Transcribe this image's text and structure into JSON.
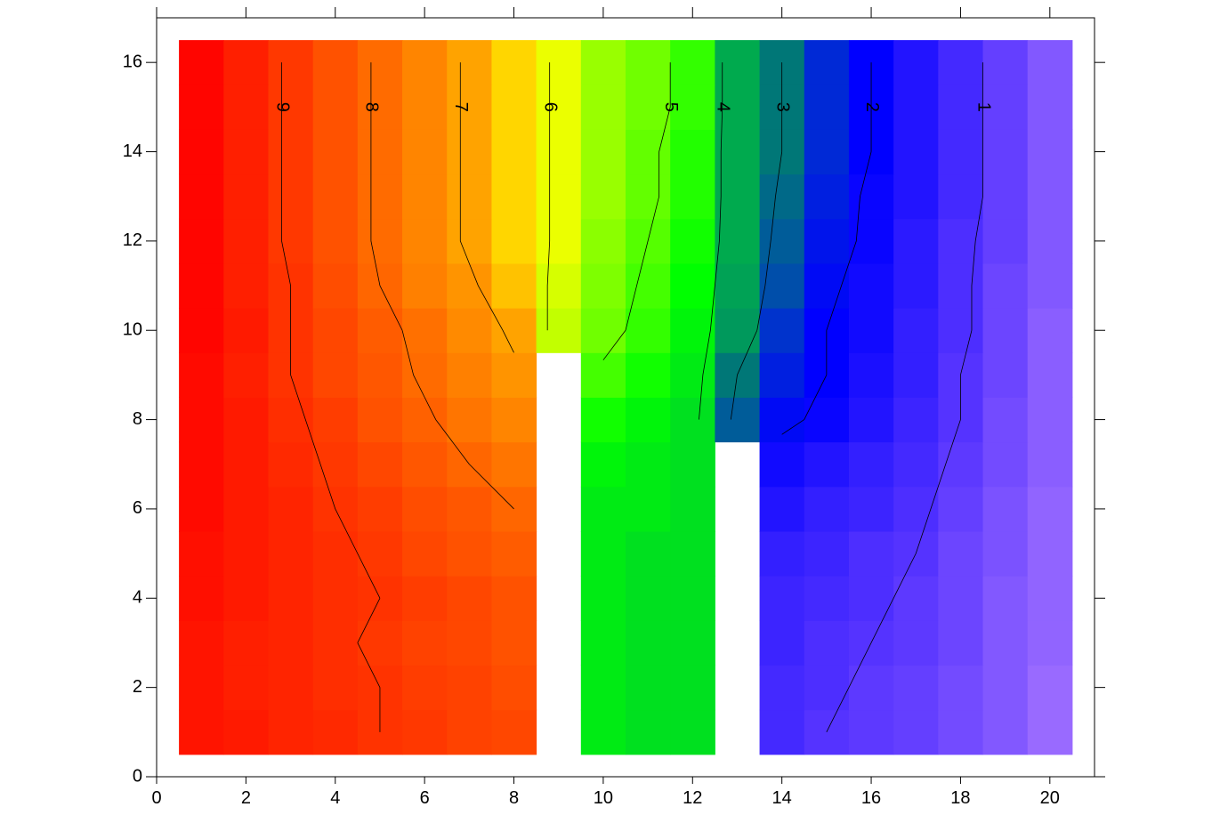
{
  "chart_data": {
    "type": "contour",
    "x": [
      1,
      2,
      3,
      4,
      5,
      6,
      7,
      8,
      9,
      10,
      11,
      12,
      13,
      14,
      15,
      16,
      17,
      18,
      19,
      20
    ],
    "y": [
      1,
      2,
      3,
      4,
      5,
      6,
      7,
      8,
      9,
      10,
      11,
      12,
      13,
      14,
      15,
      16
    ],
    "z": [
      [
        9.6,
        9.5,
        9.3,
        9.2,
        9.0,
        8.9,
        8.7,
        8.6,
        null,
        4.3,
        4.2,
        4.2,
        null,
        1.2,
        1.0,
        0.9,
        0.8,
        0.6,
        0.4,
        0.1
      ],
      [
        9.6,
        9.4,
        9.3,
        9.1,
        9.0,
        8.8,
        8.7,
        8.5,
        null,
        4.3,
        4.2,
        4.2,
        null,
        1.2,
        1.1,
        0.9,
        0.8,
        0.6,
        0.4,
        0.1
      ],
      [
        9.6,
        9.4,
        9.3,
        9.1,
        8.9,
        8.7,
        8.6,
        8.4,
        null,
        4.3,
        4.2,
        4.2,
        null,
        1.3,
        1.1,
        1.0,
        0.9,
        0.7,
        0.4,
        0.2
      ],
      [
        9.7,
        9.5,
        9.3,
        9.1,
        9.0,
        8.8,
        8.6,
        8.4,
        null,
        4.3,
        4.2,
        4.2,
        null,
        1.3,
        1.2,
        1.1,
        0.9,
        0.7,
        0.4,
        0.2
      ],
      [
        9.7,
        9.5,
        9.3,
        9.1,
        8.9,
        8.6,
        8.4,
        8.2,
        null,
        4.3,
        4.2,
        4.2,
        null,
        1.4,
        1.3,
        1.1,
        1.0,
        0.7,
        0.5,
        0.2
      ],
      [
        9.8,
        9.5,
        9.3,
        9.0,
        8.8,
        8.5,
        8.3,
        8.0,
        null,
        4.3,
        4.3,
        4.2,
        null,
        1.6,
        1.4,
        1.3,
        1.1,
        0.8,
        0.5,
        0.2
      ],
      [
        9.8,
        9.5,
        9.2,
        8.9,
        8.6,
        8.3,
        8.0,
        7.7,
        null,
        4.4,
        4.3,
        4.2,
        null,
        1.8,
        1.6,
        1.4,
        1.2,
        0.9,
        0.6,
        0.3
      ],
      [
        9.8,
        9.5,
        9.1,
        8.8,
        8.4,
        8.1,
        7.7,
        7.4,
        null,
        4.6,
        4.4,
        4.2,
        2.8,
        2.1,
        1.9,
        1.6,
        1.3,
        1.0,
        0.6,
        0.3
      ],
      [
        9.8,
        9.4,
        9.0,
        8.6,
        8.3,
        7.9,
        7.5,
        7.1,
        null,
        4.9,
        4.6,
        4.3,
        3.0,
        2.3,
        2.0,
        1.7,
        1.4,
        1.0,
        0.7,
        0.3
      ],
      [
        9.9,
        9.5,
        9.0,
        8.6,
        8.2,
        7.8,
        7.3,
        6.9,
        5.7,
        5.2,
        4.8,
        4.4,
        3.4,
        2.5,
        2.0,
        1.8,
        1.4,
        1.1,
        0.7,
        0.3
      ],
      [
        9.9,
        9.4,
        9.0,
        8.5,
        8.0,
        7.5,
        7.1,
        6.6,
        5.8,
        5.3,
        4.9,
        4.5,
        3.5,
        2.7,
        2.1,
        1.8,
        1.5,
        1.1,
        0.7,
        0.4
      ],
      [
        9.9,
        9.4,
        8.9,
        8.4,
        7.9,
        7.4,
        6.9,
        6.4,
        5.9,
        5.4,
        5.0,
        4.6,
        3.6,
        2.8,
        2.2,
        1.9,
        1.5,
        1.1,
        0.8,
        0.4
      ],
      [
        9.9,
        9.4,
        8.9,
        8.4,
        7.9,
        7.4,
        6.9,
        6.4,
        5.9,
        5.5,
        5.1,
        4.7,
        3.6,
        2.9,
        2.3,
        1.9,
        1.6,
        1.2,
        0.8,
        0.4
      ],
      [
        9.9,
        9.4,
        8.9,
        8.4,
        7.9,
        7.4,
        6.9,
        6.4,
        5.9,
        5.5,
        5.1,
        4.7,
        3.6,
        3.0,
        2.4,
        2.0,
        1.6,
        1.2,
        0.8,
        0.4
      ],
      [
        9.9,
        9.4,
        8.9,
        8.4,
        7.9,
        7.4,
        6.9,
        6.4,
        5.9,
        5.5,
        5.2,
        4.8,
        3.6,
        3.0,
        2.4,
        2.0,
        1.6,
        1.2,
        0.8,
        0.4
      ],
      [
        9.9,
        9.4,
        8.9,
        8.4,
        7.9,
        7.4,
        6.9,
        6.4,
        5.9,
        5.5,
        5.2,
        4.8,
        3.6,
        3.0,
        2.4,
        2.0,
        1.6,
        1.2,
        0.8,
        0.4
      ]
    ],
    "contour_levels": [
      1,
      2,
      3,
      4,
      5,
      6,
      7,
      8,
      9
    ],
    "colorscale": [
      [
        0,
        "#a070ff"
      ],
      [
        1,
        "#5533ff"
      ],
      [
        2,
        "#0000ff"
      ],
      [
        2.5,
        "#0033cc"
      ],
      [
        3,
        "#007777"
      ],
      [
        4,
        "#00cc33"
      ],
      [
        4.5,
        "#00ff00"
      ],
      [
        5,
        "#55ff00"
      ],
      [
        5.5,
        "#99ff00"
      ],
      [
        6,
        "#ffff00"
      ],
      [
        7,
        "#ff9900"
      ],
      [
        8,
        "#ff6600"
      ],
      [
        9,
        "#ff3300"
      ],
      [
        10,
        "#ff0000"
      ]
    ],
    "xlim": [
      0,
      21
    ],
    "ylim": [
      0,
      17
    ],
    "xticks": [
      0,
      2,
      4,
      6,
      8,
      10,
      12,
      14,
      16,
      18,
      20
    ],
    "yticks": [
      0,
      2,
      4,
      6,
      8,
      10,
      12,
      14,
      16
    ]
  }
}
